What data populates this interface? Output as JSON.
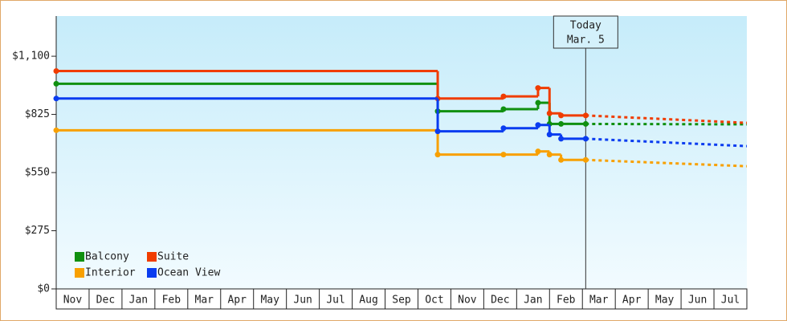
{
  "chart_data": {
    "type": "step",
    "months": [
      "Nov",
      "Dec",
      "Jan",
      "Feb",
      "Mar",
      "Apr",
      "May",
      "Jun",
      "Jul",
      "Aug",
      "Sep",
      "Oct",
      "Nov",
      "Dec",
      "Jan",
      "Feb",
      "Mar",
      "Apr",
      "May",
      "Jun",
      "Jul"
    ],
    "xlim": [
      0,
      21
    ],
    "ylim": [
      0,
      1290
    ],
    "yticks": [
      {
        "value": 0,
        "label": "$0"
      },
      {
        "value": 275,
        "label": "$275"
      },
      {
        "value": 550,
        "label": "$550"
      },
      {
        "value": 825,
        "label": "$825"
      },
      {
        "value": 1100,
        "label": "$1,100"
      }
    ],
    "x": [
      0,
      11.6,
      13.6,
      14.65,
      15.0,
      15.35,
      16.1
    ],
    "forecast_x": [
      16.1,
      21
    ],
    "today": {
      "x": 16.1,
      "title": "Today",
      "date": "Mar. 5"
    },
    "series": [
      {
        "name": "Balcony",
        "color": "#109010",
        "values": [
          970,
          840,
          850,
          880,
          780,
          780,
          780
        ],
        "forecast": [
          780,
          778
        ]
      },
      {
        "name": "Suite",
        "color": "#f03c00",
        "values": [
          1030,
          900,
          910,
          950,
          830,
          820,
          820
        ],
        "forecast": [
          820,
          785
        ]
      },
      {
        "name": "Interior",
        "color": "#f8a000",
        "values": [
          750,
          635,
          635,
          650,
          635,
          610,
          610
        ],
        "forecast": [
          610,
          580
        ]
      },
      {
        "name": "Ocean View",
        "color": "#0a3cf0",
        "values": [
          900,
          745,
          760,
          775,
          730,
          710,
          710
        ],
        "forecast": [
          710,
          675
        ]
      }
    ]
  }
}
